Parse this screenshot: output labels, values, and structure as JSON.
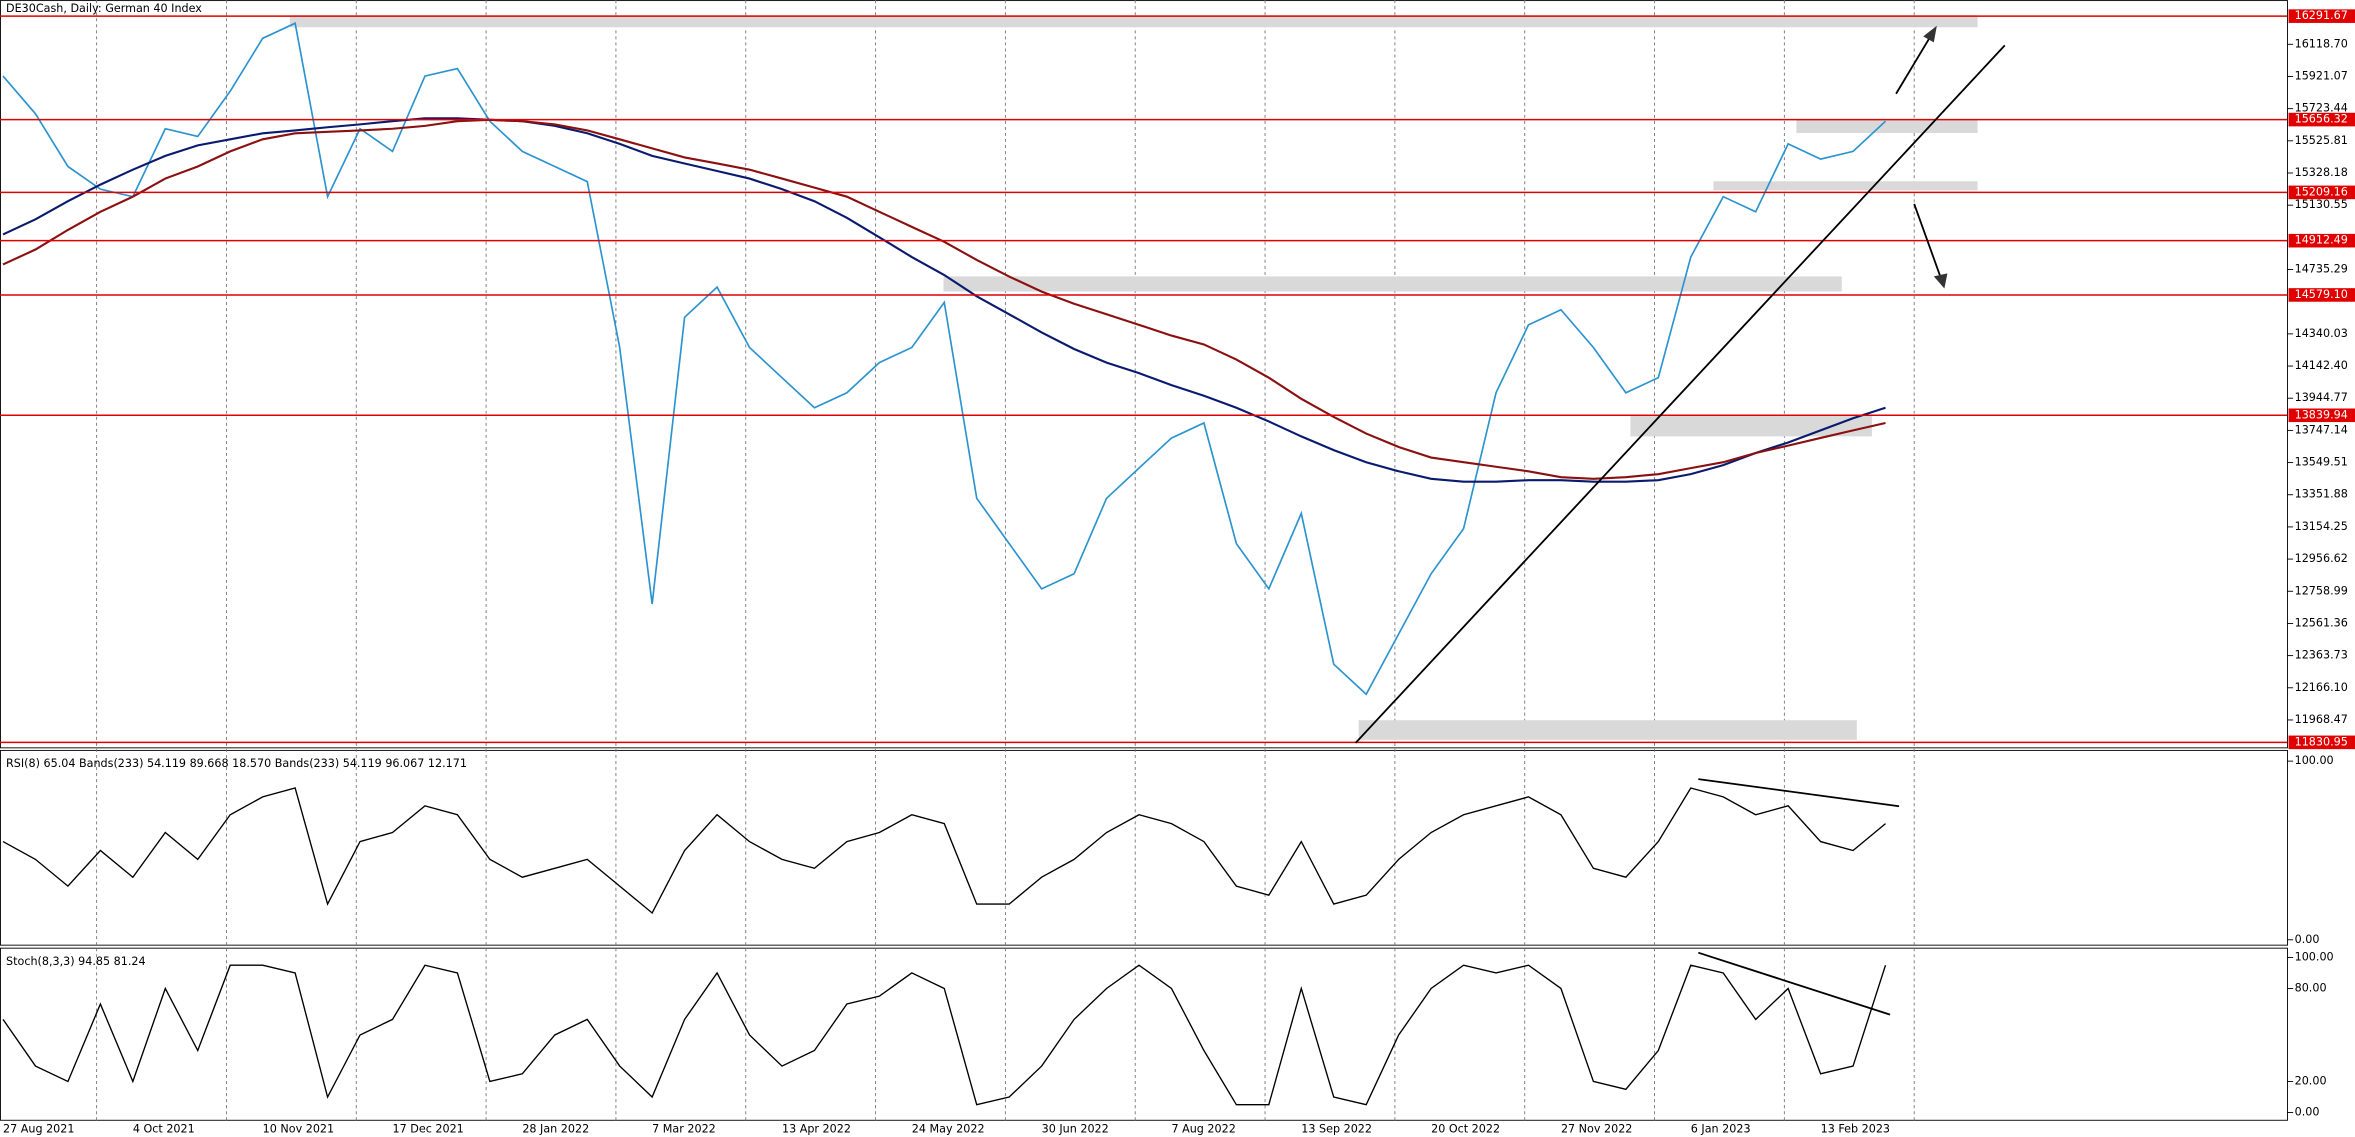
{
  "chart_data": [
    {
      "type": "line",
      "title": "DE30Cash, Daily:  German 40 Index",
      "categories": [
        "27 Aug 2021",
        null,
        null,
        null,
        "4 Oct 2021",
        null,
        null,
        null,
        "10 Nov 2021",
        null,
        null,
        null,
        "17 Dec 2021",
        null,
        null,
        null,
        "28 Jan 2022",
        null,
        null,
        null,
        "7 Mar 2022",
        null,
        null,
        null,
        "13 Apr 2022",
        null,
        null,
        null,
        "24 May 2022",
        null,
        null,
        null,
        "30 Jun 2022",
        null,
        null,
        null,
        "7 Aug 2022",
        null,
        null,
        null,
        "13 Sep 2022",
        null,
        null,
        null,
        "20 Oct 2022",
        null,
        null,
        null,
        "27 Nov 2022",
        null,
        null,
        null,
        "6 Jan 2023",
        null,
        null,
        null,
        "13 Feb 2023",
        null,
        null
      ],
      "series": [
        {
          "color": "#2b93cf",
          "values": [
            15924,
            15692,
            15368,
            15229,
            15183,
            15600,
            15553,
            15831,
            16155,
            16248,
            15183,
            15600,
            15461,
            15924,
            15970,
            15646,
            15461,
            15368,
            15275,
            14256,
            12681,
            14442,
            14627,
            14256,
            14071,
            13886,
            13978,
            14164,
            14256,
            14534,
            13330,
            13052,
            12774,
            12866,
            13330,
            13515,
            13700,
            13793,
            13052,
            12774,
            13237,
            12311,
            12126,
            12496,
            12866,
            13144,
            13978,
            14395,
            14488,
            14256,
            13978,
            14071,
            14812,
            15183,
            15090,
            15507,
            15414,
            15461,
            15646
          ]
        },
        {
          "color": "#0a1a6e",
          "values": [
            14951,
            15044,
            15155,
            15257,
            15349,
            15433,
            15498,
            15535,
            15572,
            15590,
            15609,
            15627,
            15646,
            15664,
            15664,
            15655,
            15646,
            15618,
            15572,
            15507,
            15433,
            15387,
            15340,
            15294,
            15229,
            15155,
            15053,
            14933,
            14812,
            14701,
            14571,
            14460,
            14349,
            14247,
            14164,
            14099,
            14025,
            13960,
            13886,
            13802,
            13710,
            13626,
            13552,
            13496,
            13450,
            13432,
            13432,
            13441,
            13441,
            13432,
            13432,
            13441,
            13478,
            13534,
            13608,
            13673,
            13747,
            13821,
            13886
          ]
        },
        {
          "color": "#8b1010",
          "values": [
            14766,
            14858,
            14979,
            15090,
            15183,
            15294,
            15368,
            15461,
            15535,
            15572,
            15581,
            15590,
            15600,
            15618,
            15646,
            15655,
            15646,
            15627,
            15590,
            15535,
            15479,
            15424,
            15387,
            15349,
            15294,
            15238,
            15183,
            15090,
            14997,
            14905,
            14794,
            14692,
            14599,
            14525,
            14460,
            14395,
            14330,
            14275,
            14182,
            14071,
            13941,
            13830,
            13728,
            13645,
            13580,
            13552,
            13524,
            13496,
            13460,
            13450,
            13460,
            13478,
            13515,
            13552,
            13608,
            13654,
            13701,
            13747,
            13793
          ]
        }
      ],
      "ylim": [
        11800,
        16390
      ],
      "yticks": [
        {
          "value": 16118.7,
          "label": "16118.70"
        },
        {
          "value": 15921.07,
          "label": "15921.07"
        },
        {
          "value": 15723.44,
          "label": "15723.44"
        },
        {
          "value": 15525.81,
          "label": "15525.81"
        },
        {
          "value": 15328.18,
          "label": "15328.18"
        },
        {
          "value": 15130.55,
          "label": "15130.55"
        },
        {
          "value": 14735.29,
          "label": "14735.29"
        },
        {
          "value": 14340.03,
          "label": "14340.03"
        },
        {
          "value": 14142.4,
          "label": "14142.40"
        },
        {
          "value": 13944.77,
          "label": "13944.77"
        },
        {
          "value": 13747.14,
          "label": "13747.14"
        },
        {
          "value": 13549.51,
          "label": "13549.51"
        },
        {
          "value": 13351.88,
          "label": "13351.88"
        },
        {
          "value": 13154.25,
          "label": "13154.25"
        },
        {
          "value": 12956.62,
          "label": "12956.62"
        },
        {
          "value": 12758.99,
          "label": "12758.99"
        },
        {
          "value": 12561.36,
          "label": "12561.36"
        },
        {
          "value": 12363.73,
          "label": "12363.73"
        },
        {
          "value": 12166.1,
          "label": "12166.10"
        },
        {
          "value": 11968.47,
          "label": "11968.47"
        }
      ],
      "levels": [
        {
          "value": 16291.67,
          "label": "16291.67"
        },
        {
          "value": 15656.32,
          "label": "15656.32"
        },
        {
          "value": 15209.16,
          "label": "15209.16"
        },
        {
          "value": 14912.49,
          "label": "14912.49"
        },
        {
          "value": 14579.1,
          "label": "14579.10"
        },
        {
          "value": 13839.94,
          "label": "13839.94"
        },
        {
          "value": 11830.95,
          "label": "11830.95"
        }
      ],
      "level_color": "#e00000"
    },
    {
      "type": "line",
      "title": "RSI(8) 65.04 Bands(233) 54.119 89.668 18.570 Bands(233) 54.119 96.067 12.171",
      "color": "#000000",
      "values": [
        55,
        45,
        30,
        50,
        35,
        60,
        45,
        70,
        80,
        85,
        20,
        55,
        60,
        75,
        70,
        45,
        35,
        40,
        45,
        30,
        15,
        50,
        70,
        55,
        45,
        40,
        55,
        60,
        70,
        65,
        20,
        20,
        35,
        45,
        60,
        70,
        65,
        55,
        30,
        25,
        55,
        20,
        25,
        45,
        60,
        70,
        75,
        80,
        70,
        40,
        35,
        55,
        85,
        80,
        70,
        75,
        55,
        50,
        65
      ],
      "ylim": [
        -3,
        106
      ],
      "yticks": [
        {
          "value": 100,
          "label": "100.00"
        },
        {
          "value": 0,
          "label": "0.00"
        }
      ]
    },
    {
      "type": "line",
      "title": "Stoch(8,3,3) 94.85 81.24",
      "color": "#000000",
      "values": [
        60,
        30,
        20,
        70,
        20,
        80,
        40,
        95,
        95,
        90,
        10,
        50,
        60,
        95,
        90,
        20,
        25,
        50,
        60,
        30,
        10,
        60,
        90,
        50,
        30,
        40,
        70,
        75,
        90,
        80,
        5,
        10,
        30,
        60,
        80,
        95,
        80,
        40,
        5,
        5,
        80,
        10,
        5,
        50,
        80,
        95,
        90,
        95,
        80,
        20,
        15,
        40,
        95,
        90,
        60,
        80,
        25,
        30,
        95
      ],
      "ylim": [
        -5,
        106
      ],
      "yticks": [
        {
          "value": 100,
          "label": "100.00"
        },
        {
          "value": 80,
          "label": "80.00"
        },
        {
          "value": 20,
          "label": "20.00"
        },
        {
          "value": 0,
          "label": "0.00"
        }
      ]
    }
  ]
}
